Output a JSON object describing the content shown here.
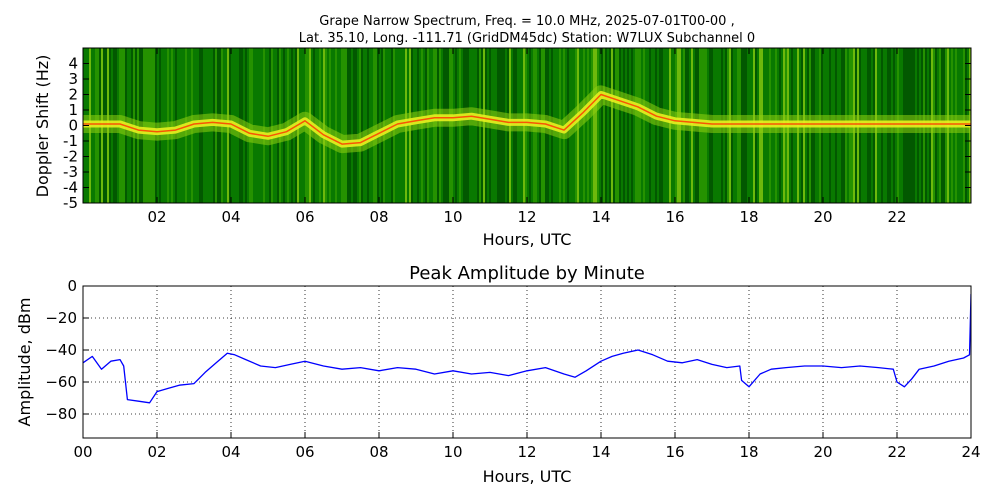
{
  "figure": {
    "title_line1": "Grape Narrow Spectrum, Freq. = 10.0 MHz, 2025-07-01T00-00 ,",
    "title_line2": "Lat.  35.10, Long. -111.71 (GridDM45dc) Station: W7LUX Subchannel 0"
  },
  "chart_data": [
    {
      "type": "heatmap",
      "title": "",
      "xlabel": "Hours, UTC",
      "ylabel": "Doppler Shift (Hz)",
      "xlim": [
        0,
        24
      ],
      "ylim": [
        -5,
        5
      ],
      "xticks": [
        2,
        4,
        6,
        8,
        10,
        12,
        14,
        16,
        18,
        20,
        22
      ],
      "xtick_labels": [
        "02",
        "04",
        "06",
        "08",
        "10",
        "12",
        "14",
        "16",
        "18",
        "20",
        "22"
      ],
      "yticks": [
        4,
        3,
        2,
        1,
        0,
        -1,
        -2,
        -3,
        -4,
        -5
      ],
      "ytick_labels": [
        "4",
        "3",
        "2",
        "1",
        "0",
        "-1",
        "-2",
        "-3",
        "-4",
        "-5"
      ],
      "colormap": [
        "#004d00",
        "#0a7a00",
        "#2f9b00",
        "#8fcf10",
        "#e8f020",
        "#ffd000",
        "#ff3000"
      ],
      "peak_track": {
        "hours": [
          0,
          0.5,
          1,
          1.5,
          2,
          2.5,
          3,
          3.5,
          4,
          4.5,
          5,
          5.5,
          6,
          6.5,
          7,
          7.5,
          8,
          8.5,
          9,
          9.5,
          10,
          10.5,
          11,
          11.5,
          12,
          12.5,
          13,
          13.5,
          14,
          14.5,
          15,
          15.5,
          16,
          16.5,
          17,
          17.5,
          18,
          18.5,
          19,
          19.5,
          20,
          20.5,
          21,
          21.5,
          22,
          22.5,
          23,
          23.5,
          24
        ],
        "shift_hz": [
          0.1,
          0.1,
          0.1,
          -0.3,
          -0.4,
          -0.3,
          0.1,
          0.2,
          0.1,
          -0.5,
          -0.7,
          -0.4,
          0.3,
          -0.6,
          -1.2,
          -1.1,
          -0.5,
          0.1,
          0.3,
          0.5,
          0.5,
          0.6,
          0.4,
          0.2,
          0.2,
          0.1,
          -0.3,
          0.8,
          2.0,
          1.6,
          1.2,
          0.6,
          0.3,
          0.2,
          0.1,
          0.1,
          0.1,
          0.1,
          0.1,
          0.1,
          0.1,
          0.1,
          0.1,
          0.1,
          0.1,
          0.1,
          0.1,
          0.1,
          0.1
        ]
      }
    },
    {
      "type": "line",
      "title": "Peak Amplitude by Minute",
      "xlabel": "Hours, UTC",
      "ylabel": "Amplitude, dBm",
      "xlim": [
        0,
        24
      ],
      "ylim": [
        -95,
        0
      ],
      "grid": true,
      "xticks": [
        0,
        2,
        4,
        6,
        8,
        10,
        12,
        14,
        16,
        18,
        20,
        22,
        24
      ],
      "xtick_labels": [
        "00",
        "02",
        "04",
        "06",
        "08",
        "10",
        "12",
        "14",
        "16",
        "18",
        "20",
        "22",
        "24"
      ],
      "yticks": [
        0,
        -20,
        -40,
        -60,
        -80
      ],
      "ytick_labels": [
        "0",
        "−20",
        "−40",
        "−60",
        "−80"
      ],
      "series": [
        {
          "color": "#0000ff",
          "x": [
            0,
            0.25,
            0.5,
            0.75,
            1.0,
            1.1,
            1.2,
            1.5,
            1.8,
            2.0,
            2.3,
            2.6,
            3.0,
            3.3,
            3.6,
            3.9,
            4.1,
            4.4,
            4.8,
            5.2,
            5.6,
            6.0,
            6.5,
            7.0,
            7.5,
            8.0,
            8.5,
            9.0,
            9.5,
            10.0,
            10.5,
            11.0,
            11.5,
            12.0,
            12.5,
            13.0,
            13.3,
            13.6,
            14.0,
            14.3,
            14.6,
            15.0,
            15.4,
            15.8,
            16.2,
            16.6,
            17.0,
            17.4,
            17.75,
            17.8,
            18.0,
            18.3,
            18.6,
            19.0,
            19.5,
            20.0,
            20.5,
            21.0,
            21.5,
            21.9,
            22.0,
            22.2,
            22.4,
            22.6,
            23.0,
            23.4,
            23.8,
            23.96,
            24.0
          ],
          "y": [
            -48,
            -44,
            -52,
            -47,
            -46,
            -50,
            -71,
            -72,
            -73,
            -66,
            -64,
            -62,
            -61,
            -54,
            -48,
            -42,
            -43,
            -46,
            -50,
            -51,
            -49,
            -47,
            -50,
            -52,
            -51,
            -53,
            -51,
            -52,
            -55,
            -53,
            -55,
            -54,
            -56,
            -53,
            -51,
            -55,
            -57,
            -53,
            -47,
            -44,
            -42,
            -40,
            -43,
            -47,
            -48,
            -46,
            -49,
            -51,
            -50,
            -59,
            -63,
            -55,
            -52,
            -51,
            -50,
            -50,
            -51,
            -50,
            -51,
            -52,
            -60,
            -63,
            -58,
            -52,
            -50,
            -47,
            -45,
            -43,
            -5
          ]
        }
      ]
    }
  ]
}
